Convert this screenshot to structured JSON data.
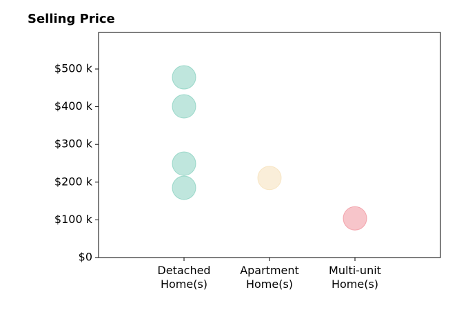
{
  "chart_data": {
    "type": "strip",
    "title": "Selling Price",
    "categories": [
      "Detached\nHome(s)",
      "Apartment\nHome(s)",
      "Multi-unit\nHome(s)"
    ],
    "values": [
      [
        478000,
        401000,
        249000,
        185000
      ],
      [
        211000
      ],
      [
        104000
      ]
    ],
    "colors": [
      "#7fcdbb",
      "#f5deb3",
      "#f08c96"
    ],
    "xlim": [
      -1,
      3
    ],
    "ylim": [
      0,
      597000
    ],
    "yticks": [
      {
        "value": 0,
        "label": "$0"
      },
      {
        "value": 100000,
        "label": "$100 k"
      },
      {
        "value": 200000,
        "label": "$200 k"
      },
      {
        "value": 300000,
        "label": "$300 k"
      },
      {
        "value": 400000,
        "label": "$400 k"
      },
      {
        "value": 500000,
        "label": "$500 k"
      }
    ]
  }
}
